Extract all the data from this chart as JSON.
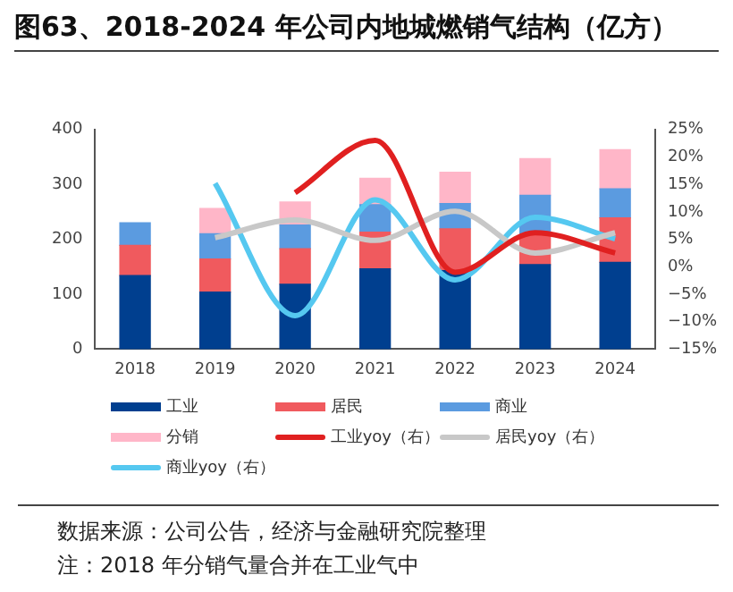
{
  "chart_data": {
    "type": "bar",
    "title": "图63、2018-2024 年公司内地城燃销气结构（亿方）",
    "categories": [
      "2018",
      "2019",
      "2020",
      "2021",
      "2022",
      "2023",
      "2024"
    ],
    "stacked": true,
    "series": [
      {
        "name": "工业",
        "color": "#003f8f",
        "values": [
          134,
          104,
          118,
          146,
          143,
          154,
          158
        ]
      },
      {
        "name": "居民",
        "color": "#f05a5e",
        "values": [
          55,
          60,
          65,
          67,
          76,
          55,
          81
        ]
      },
      {
        "name": "商业",
        "color": "#5b9be0",
        "values": [
          41,
          46,
          43,
          50,
          46,
          71,
          53
        ]
      },
      {
        "name": "分销",
        "color": "#ffb6c8",
        "values": [
          null,
          46,
          42,
          48,
          57,
          67,
          71
        ]
      },
      {
        "name": "工业yoy（右）",
        "type": "line",
        "axis": "y2",
        "color": "#e02020",
        "values": [
          null,
          null,
          13.5,
          23,
          -1,
          6.2,
          2.5
        ]
      },
      {
        "name": "居民yoy（右）",
        "type": "line",
        "axis": "y2",
        "color": "#c8c8c8",
        "values": [
          null,
          5.3,
          8.5,
          4.8,
          10.1,
          2.5,
          6.2
        ]
      },
      {
        "name": "商业yoy（右）",
        "type": "line",
        "axis": "y2",
        "color": "#55c8f0",
        "values": [
          null,
          15.2,
          -8.9,
          12.2,
          -2.4,
          9,
          5.1
        ]
      }
    ],
    "ylim": [
      0,
      400
    ],
    "yticks": [
      0,
      100,
      200,
      300,
      400
    ],
    "y2lim": [
      -15,
      25
    ],
    "y2ticks": [
      {
        "value": -15,
        "label": "−15%"
      },
      {
        "value": -10,
        "label": "−10%"
      },
      {
        "value": -5,
        "label": "−5%"
      },
      {
        "value": 0,
        "label": "0%"
      },
      {
        "value": 5,
        "label": "5%"
      },
      {
        "value": 10,
        "label": "10%"
      },
      {
        "value": 15,
        "label": "15%"
      },
      {
        "value": 20,
        "label": "20%"
      },
      {
        "value": 25,
        "label": "25%"
      }
    ],
    "grid": false,
    "legend": "bottom",
    "marker": "none",
    "line_style": "solid",
    "annotations": [
      "数据来源：公司公告，经济与金融研究院整理",
      "注：2018 年分销气量合并在工业气中"
    ]
  }
}
